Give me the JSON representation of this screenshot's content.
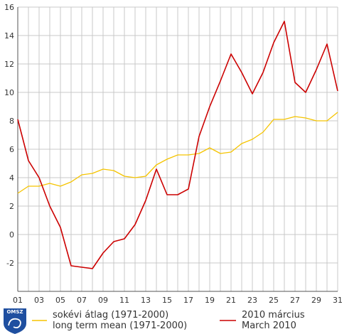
{
  "chart_data": {
    "type": "line",
    "x": [
      1,
      2,
      3,
      4,
      5,
      6,
      7,
      8,
      9,
      10,
      11,
      12,
      13,
      14,
      15,
      16,
      17,
      18,
      19,
      20,
      21,
      22,
      23,
      24,
      25,
      26,
      27,
      28,
      29,
      30,
      31
    ],
    "xticks": [
      "01",
      "03",
      "05",
      "07",
      "09",
      "11",
      "13",
      "15",
      "17",
      "19",
      "21",
      "23",
      "25",
      "27",
      "29",
      "31"
    ],
    "xlim": [
      1,
      31
    ],
    "ylim": [
      -4,
      16
    ],
    "yticks": [
      -2,
      0,
      2,
      4,
      6,
      8,
      10,
      12,
      14,
      16
    ],
    "grid": true,
    "legend_position": "bottom",
    "series": [
      {
        "name": "sokévi átlag (1971-2000)",
        "name_en": "long term mean (1971-2000)",
        "color": "#f5c400",
        "values": [
          2.9,
          3.4,
          3.4,
          3.6,
          3.4,
          3.7,
          4.2,
          4.3,
          4.6,
          4.5,
          4.1,
          4.0,
          4.1,
          4.9,
          5.3,
          5.6,
          5.6,
          5.7,
          6.1,
          5.7,
          5.8,
          6.4,
          6.7,
          7.2,
          8.1,
          8.1,
          8.3,
          8.2,
          8.0,
          8.0,
          8.6
        ]
      },
      {
        "name": "2010 március",
        "name_en": "March 2010",
        "color": "#cc0000",
        "values": [
          8.1,
          5.2,
          4.0,
          2.0,
          0.5,
          -2.2,
          -2.3,
          -2.4,
          -1.3,
          -0.5,
          -0.3,
          0.7,
          2.4,
          4.6,
          2.8,
          2.8,
          3.2,
          6.9,
          9.0,
          10.8,
          12.7,
          11.4,
          9.9,
          11.4,
          13.5,
          15.0,
          10.7,
          10.0,
          11.6,
          13.4,
          10.1
        ]
      }
    ]
  },
  "logo": {
    "text": "OMSZ",
    "color": "#1f4fa0"
  }
}
